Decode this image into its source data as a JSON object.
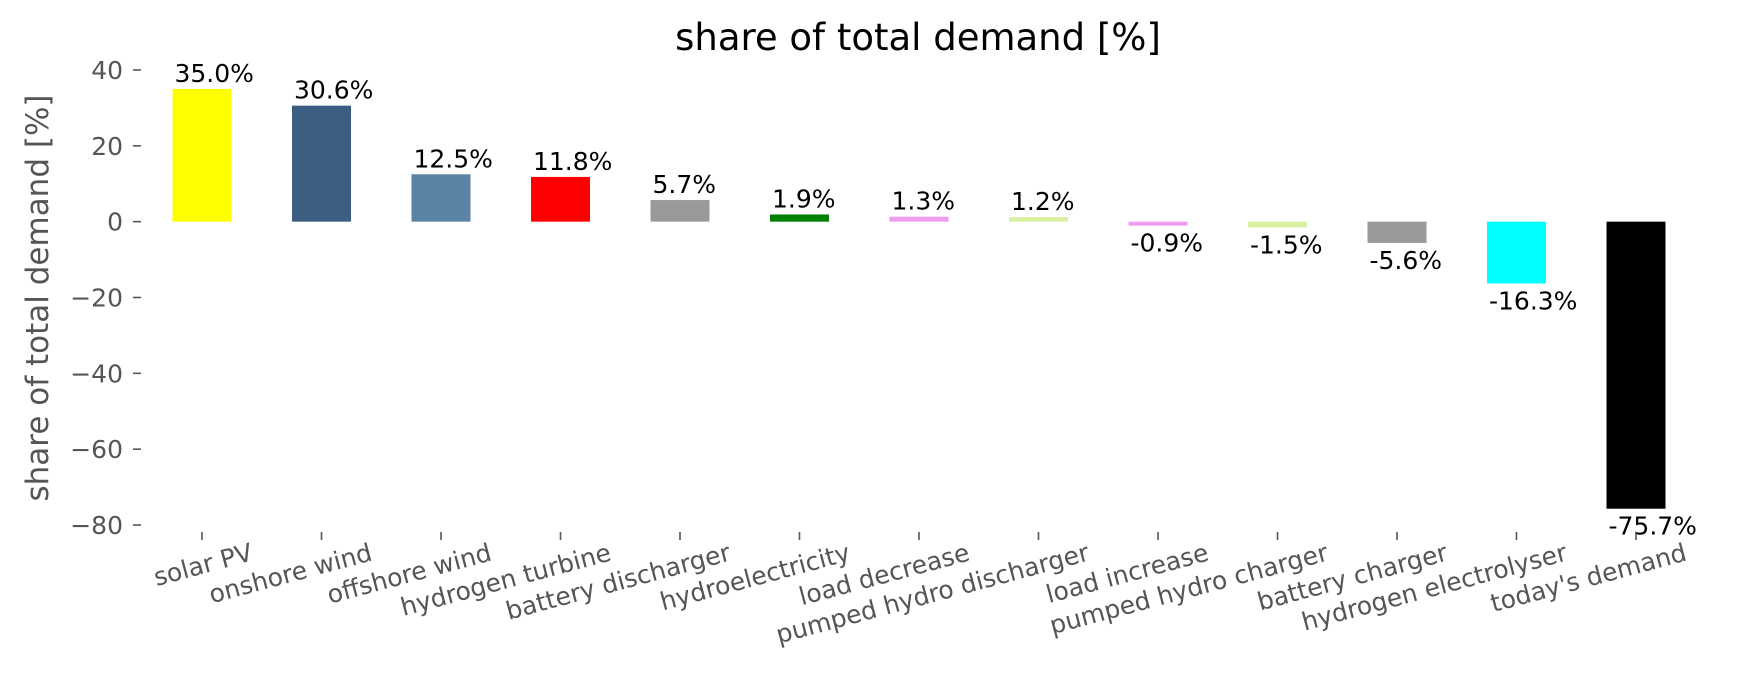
{
  "chart_data": {
    "type": "bar",
    "title": "share of total demand [%]",
    "xlabel": "",
    "ylabel": "share of total demand [%]",
    "ylim": [
      -80,
      40
    ],
    "yticks": [
      40,
      20,
      0,
      -20,
      -40,
      -60,
      -80
    ],
    "ytick_labels": [
      "40",
      "20",
      "0",
      "−20",
      "−40",
      "−60",
      "−80"
    ],
    "grid": false,
    "categories": [
      "solar PV",
      "onshore wind",
      "offshore wind",
      "hydrogen turbine",
      "battery discharger",
      "hydroelectricity",
      "load decrease",
      "pumped hydro discharger",
      "load increase",
      "pumped hydro charger",
      "battery charger",
      "hydrogen electrolyser",
      "today's demand"
    ],
    "values": [
      35.0,
      30.6,
      12.5,
      11.8,
      5.7,
      1.9,
      1.3,
      1.2,
      -0.9,
      -1.5,
      -5.6,
      -16.3,
      -75.7
    ],
    "labels": [
      "35.0%",
      "30.6%",
      "12.5%",
      "11.8%",
      "5.7%",
      "1.9%",
      "1.3%",
      "1.2%",
      "-0.9%",
      "-1.5%",
      "-5.6%",
      "-16.3%",
      "-75.7%"
    ],
    "colors": [
      "#ffff00",
      "#3b5e82",
      "#5b83a6",
      "#ff0000",
      "#999999",
      "#008000",
      "#f09cf0",
      "#d8f0a0",
      "#f09cf0",
      "#d8f0a0",
      "#999999",
      "#00ffff",
      "#000000"
    ]
  }
}
